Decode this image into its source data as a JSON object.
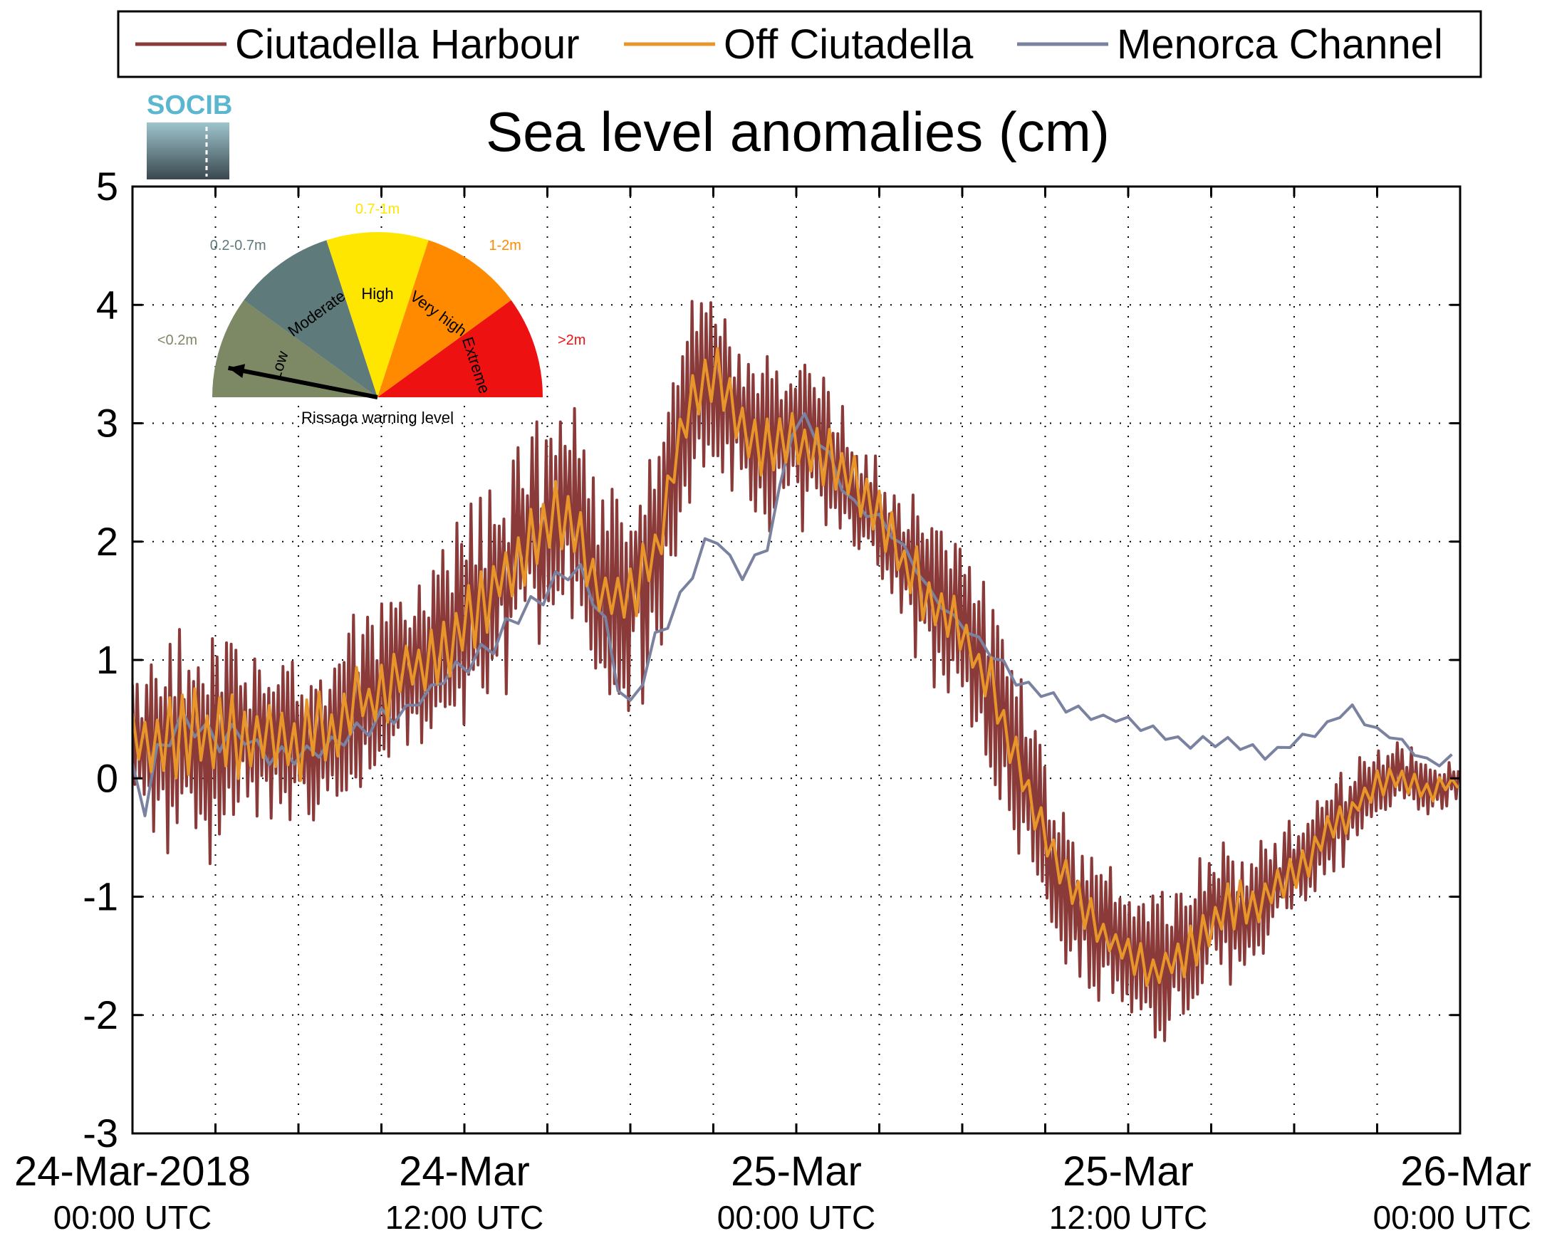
{
  "chart_data": {
    "type": "line",
    "title": "Sea level anomalies (cm)",
    "xlabel": "",
    "ylabel": "",
    "ylim": [
      -3,
      5
    ],
    "yticks": [
      -3,
      -2,
      -1,
      0,
      1,
      2,
      3,
      4,
      5
    ],
    "xrange_hours": [
      0,
      48
    ],
    "xticks": [
      {
        "hour": 0,
        "line1": "24-Mar-2018",
        "line2": "00:00 UTC"
      },
      {
        "hour": 12,
        "line1": "24-Mar",
        "line2": "12:00 UTC"
      },
      {
        "hour": 24,
        "line1": "25-Mar",
        "line2": "00:00 UTC"
      },
      {
        "hour": 36,
        "line1": "25-Mar",
        "line2": "12:00 UTC"
      },
      {
        "hour": 48,
        "line1": "26-Mar",
        "line2": "00:00 UTC"
      }
    ],
    "grid": true,
    "legend": {
      "position": "top",
      "boxed": true
    },
    "series": [
      {
        "name": "Ciutadella Harbour",
        "color": "#8b3a3a",
        "anchors": [
          [
            0,
            0.3
          ],
          [
            1,
            0.3
          ],
          [
            2,
            0.4
          ],
          [
            3,
            0.3
          ],
          [
            4,
            0.4
          ],
          [
            5,
            0.4
          ],
          [
            6,
            0.3
          ],
          [
            7,
            0.4
          ],
          [
            8,
            0.6
          ],
          [
            9,
            0.7
          ],
          [
            10,
            0.9
          ],
          [
            11,
            1.1
          ],
          [
            12,
            1.3
          ],
          [
            13,
            1.6
          ],
          [
            14,
            1.9
          ],
          [
            15,
            2.1
          ],
          [
            16,
            2.2
          ],
          [
            17,
            1.5
          ],
          [
            18,
            1.5
          ],
          [
            19,
            2.0
          ],
          [
            20,
            3.0
          ],
          [
            21,
            3.4
          ],
          [
            22,
            3.0
          ],
          [
            23,
            2.8
          ],
          [
            24,
            2.9
          ],
          [
            25,
            2.7
          ],
          [
            26,
            2.5
          ],
          [
            27,
            2.2
          ],
          [
            28,
            1.8
          ],
          [
            29,
            1.5
          ],
          [
            30,
            1.2
          ],
          [
            31,
            0.8
          ],
          [
            32,
            0.2
          ],
          [
            33,
            -0.5
          ],
          [
            34,
            -1.0
          ],
          [
            35,
            -1.3
          ],
          [
            36,
            -1.5
          ],
          [
            37,
            -1.6
          ],
          [
            38,
            -1.5
          ],
          [
            39,
            -1.2
          ],
          [
            40,
            -1.1
          ],
          [
            41,
            -1.0
          ],
          [
            42,
            -0.8
          ],
          [
            43,
            -0.5
          ],
          [
            44,
            -0.3
          ],
          [
            45,
            0.0
          ],
          [
            46,
            0.0
          ],
          [
            47,
            -0.1
          ],
          [
            48,
            0.0
          ]
        ],
        "envelope": [
          [
            0,
            0.6
          ],
          [
            2,
            1.2
          ],
          [
            4,
            0.8
          ],
          [
            10,
            0.8
          ],
          [
            12,
            1.0
          ],
          [
            18,
            1.2
          ],
          [
            20,
            1.0
          ],
          [
            22,
            0.8
          ],
          [
            24,
            0.8
          ],
          [
            26,
            0.6
          ],
          [
            30,
            0.8
          ],
          [
            32,
            0.9
          ],
          [
            34,
            0.7
          ],
          [
            36,
            0.6
          ],
          [
            38,
            0.7
          ],
          [
            40,
            0.6
          ],
          [
            44,
            0.4
          ],
          [
            48,
            0.2
          ]
        ],
        "period_h": 0.17
      },
      {
        "name": "Off Ciutadella",
        "color": "#e8952a",
        "anchors": [
          [
            0,
            0.3
          ],
          [
            1,
            0.3
          ],
          [
            2,
            0.4
          ],
          [
            3,
            0.3
          ],
          [
            4,
            0.4
          ],
          [
            5,
            0.4
          ],
          [
            6,
            0.3
          ],
          [
            7,
            0.4
          ],
          [
            8,
            0.6
          ],
          [
            9,
            0.7
          ],
          [
            10,
            0.9
          ],
          [
            11,
            1.1
          ],
          [
            12,
            1.3
          ],
          [
            13,
            1.6
          ],
          [
            14,
            1.9
          ],
          [
            15,
            2.1
          ],
          [
            16,
            2.2
          ],
          [
            17,
            1.5
          ],
          [
            18,
            1.5
          ],
          [
            19,
            2.0
          ],
          [
            20,
            3.0
          ],
          [
            21,
            3.4
          ],
          [
            22,
            3.0
          ],
          [
            23,
            2.8
          ],
          [
            24,
            2.9
          ],
          [
            25,
            2.7
          ],
          [
            26,
            2.5
          ],
          [
            27,
            2.2
          ],
          [
            28,
            1.8
          ],
          [
            29,
            1.5
          ],
          [
            30,
            1.2
          ],
          [
            31,
            0.8
          ],
          [
            32,
            0.2
          ],
          [
            33,
            -0.5
          ],
          [
            34,
            -1.0
          ],
          [
            35,
            -1.3
          ],
          [
            36,
            -1.5
          ],
          [
            37,
            -1.6
          ],
          [
            38,
            -1.5
          ],
          [
            39,
            -1.2
          ],
          [
            40,
            -1.1
          ],
          [
            41,
            -1.0
          ],
          [
            42,
            -0.8
          ],
          [
            43,
            -0.5
          ],
          [
            44,
            -0.3
          ],
          [
            45,
            0.0
          ],
          [
            46,
            0.0
          ],
          [
            47,
            -0.1
          ],
          [
            48,
            0.0
          ]
        ],
        "envelope": [
          [
            0,
            0.3
          ],
          [
            2,
            0.45
          ],
          [
            10,
            0.35
          ],
          [
            16,
            0.4
          ],
          [
            20,
            0.35
          ],
          [
            24,
            0.3
          ],
          [
            30,
            0.3
          ],
          [
            34,
            0.25
          ],
          [
            40,
            0.25
          ],
          [
            48,
            0.1
          ]
        ],
        "period_h": 0.45
      },
      {
        "name": "Menorca Channel",
        "color": "#7a82a0",
        "anchors": [
          [
            0,
            0.0
          ],
          [
            0.5,
            -0.2
          ],
          [
            1,
            0.3
          ],
          [
            2,
            0.5
          ],
          [
            3,
            0.3
          ],
          [
            4,
            0.4
          ],
          [
            5,
            0.2
          ],
          [
            6,
            0.2
          ],
          [
            7,
            0.3
          ],
          [
            8,
            0.4
          ],
          [
            9,
            0.5
          ],
          [
            10,
            0.6
          ],
          [
            11,
            0.8
          ],
          [
            12,
            1.0
          ],
          [
            13,
            1.1
          ],
          [
            14,
            1.4
          ],
          [
            15,
            1.6
          ],
          [
            16,
            1.8
          ],
          [
            17,
            1.4
          ],
          [
            17.5,
            0.8
          ],
          [
            18,
            0.6
          ],
          [
            19,
            1.2
          ],
          [
            20,
            1.6
          ],
          [
            21,
            2.1
          ],
          [
            22,
            1.7
          ],
          [
            23,
            2.0
          ],
          [
            24,
            3.1
          ],
          [
            25,
            2.8
          ],
          [
            26,
            2.3
          ],
          [
            27,
            2.2
          ],
          [
            28,
            1.9
          ],
          [
            29,
            1.5
          ],
          [
            30,
            1.3
          ],
          [
            31,
            1.1
          ],
          [
            32,
            0.8
          ],
          [
            33,
            0.7
          ],
          [
            34,
            0.6
          ],
          [
            35,
            0.5
          ],
          [
            36,
            0.5
          ],
          [
            37,
            0.4
          ],
          [
            38,
            0.3
          ],
          [
            39,
            0.3
          ],
          [
            40,
            0.3
          ],
          [
            41,
            0.2
          ],
          [
            42,
            0.3
          ],
          [
            43,
            0.4
          ],
          [
            44,
            0.6
          ],
          [
            45,
            0.4
          ],
          [
            46,
            0.3
          ],
          [
            47,
            0.1
          ],
          [
            48,
            0.2
          ]
        ],
        "envelope": [
          [
            0,
            0.15
          ],
          [
            16,
            0.12
          ],
          [
            24,
            0.08
          ],
          [
            48,
            0.05
          ]
        ],
        "period_h": 0.9
      }
    ]
  },
  "legend": {
    "items": [
      {
        "label": "Ciutadella Harbour",
        "color": "#8b3a3a"
      },
      {
        "label": "Off Ciutadella",
        "color": "#e8952a"
      },
      {
        "label": "Menorca Channel",
        "color": "#7a82a0"
      }
    ]
  },
  "logo": {
    "text": "SOCIB"
  },
  "gauge": {
    "caption": "Rissaga warning level",
    "pointer_level": "Low",
    "levels": [
      {
        "name": "Low",
        "range": "<0.2m",
        "fill": "#7d8865",
        "range_color": "#7d8865"
      },
      {
        "name": "Moderate",
        "range": "0.2-0.7m",
        "fill": "#5e7a7a",
        "range_color": "#5e7a7a"
      },
      {
        "name": "High",
        "range": "0.7-1m",
        "fill": "#ffe600",
        "range_color": "#ffe600"
      },
      {
        "name": "Very high",
        "range": "1-2m",
        "fill": "#ff8a00",
        "range_color": "#ff8a00"
      },
      {
        "name": "Extreme",
        "range": ">2m",
        "fill": "#ee1111",
        "range_color": "#ee1111"
      }
    ]
  }
}
